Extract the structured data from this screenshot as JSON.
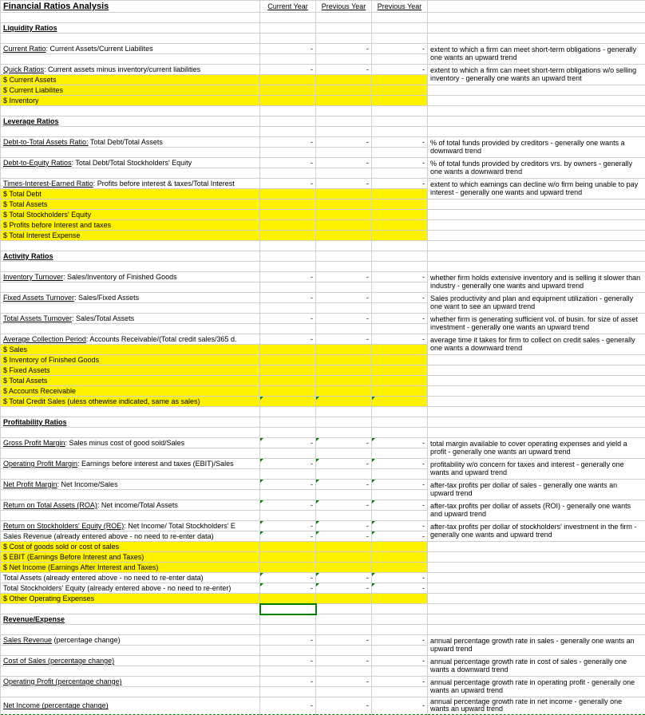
{
  "title": "Financial Ratios Analysis",
  "cols": {
    "cy": "Current Year",
    "py1": "Previous Year",
    "py2": "Previous Year"
  },
  "dash": "-",
  "sections": {
    "liquidity": {
      "heading": "Liquidity Ratios",
      "current_ratio": {
        "label": "Current Ratio",
        "formula": ": Current Assets/Current Liabilites",
        "note": "extent to which a firm can meet short-term obligations - generally one wants an upward trend"
      },
      "quick_ratios": {
        "label": "Quick Ratios",
        "formula": ":  Current assets minus inventory/current liabilities",
        "note": "extent to which a firm can meet short-term obligations w/o selling inventory - generally one wants an upward trent"
      },
      "inputs": [
        "$  Current Assets",
        "$  Current Liabilites",
        "$  Inventory"
      ]
    },
    "leverage": {
      "heading": "Leverage Ratios",
      "debt_assets": {
        "label": "Debt-to-Total Assets Ratio:",
        "formula": " Total Debt/Total Assets",
        "note": "% of total funds provided by creditors - generally one wants a downward trend"
      },
      "debt_equity": {
        "label": "Debt-to-Equity Ratios",
        "formula": ":  Total Debt/Total Stockholders' Equity",
        "note": "% of total funds provided by creditors vrs. by owners - generally one wants a downward trend"
      },
      "tie": {
        "label": "Times-Interest-Earned Ratio",
        "formula": ":  Profits before interest & taxes/Total Interest",
        "note": "extent to which earnings can decline w/o firm being unable to pay interest - generally one wants and upward trend"
      },
      "inputs": [
        "$  Total Debt",
        "$  Total Assets",
        "$  Total Stockholders' Equity",
        "$  Profits before Interest and taxes",
        "$  Total Interest Expense"
      ]
    },
    "activity": {
      "heading": "Activity Ratios",
      "inv_turn": {
        "label": "Inventory Turnover",
        "formula": ":  Sales/Inventory of Finished Goods",
        "note": "whether firm holds extensive inventory and is selling it slower than industry - generally one wants and upward trend"
      },
      "fa_turn": {
        "label": "Fixed Assets Turnover",
        "formula": ":  Sales/Fixed Assets",
        "note": "Sales productivity and plan and equipment utilization - generally one want to see an upward trend"
      },
      "ta_turn": {
        "label": "Total Assets Turnover",
        "formula": ":  Sales/Total Assets",
        "note": "whether firm is generating sufficient vol. of busin. for size of asset investment - generally one wants an upward trend"
      },
      "acp": {
        "label": "Average Collection Period",
        "formula": ":  Accounts Receivable/(Total credit sales/365 d.",
        "note": "average time it takes for firm to collect on credit sales - generally one wants a downward trend"
      },
      "inputs": [
        "$  Sales",
        "$  Inventory of Finished Goods",
        "$   Fixed Assets",
        "$  Total Assets",
        "$  Accounts Receivable",
        "$  Total Credit Sales (uless othewise indicated, same as sales)"
      ]
    },
    "profitability": {
      "heading": "Profitability Ratios",
      "gpm": {
        "label": "Gross Profit Margin",
        "formula": ": Sales minus cost of good sold/Sales",
        "note": "total margin available to cover operating expenses and yield a profit - generally one wants an upward trend"
      },
      "opm": {
        "label": "Operating Profit Margin",
        "formula": ":  Earnings before interest and taxes (EBIT)/Sales",
        "note": "profitability  w/o concern for taxes  and interest - generally one wants and upward trend"
      },
      "npm": {
        "label": "Net Profit Margin",
        "formula": ":  Net Income/Sales",
        "note": "after-tax profits per dollar of sales - generally one wants an upward trend"
      },
      "roa": {
        "label": "Return on Total Assets (ROA)",
        "formula": ":  Net income/Total Assets",
        "note": "after-tax profits per dollar of assets  (ROI) - generally one wants and upward trend"
      },
      "roe": {
        "label": "Return on  Stockholders' Equity (ROE)",
        "formula": ":  Net Income/ Total Stockholders' E",
        "note": "after-tax profits per dollar of stockholders' investment in the firm - generally one wants and upward trend"
      },
      "sales_rev_note": "Sales Revenue (already entered above - no need to re-enter data)",
      "inputs1": [
        "$  Cost of goods sold or cost of sales",
        "$  EBIT (Earnings Before Interest and Taxes)",
        "$  Net Income (Earnings After Interest and Taxes)"
      ],
      "ta_note": "Total Assets (already entered above - no need to re-enter data)",
      "tse_note": "Total Stockholders' Equity (already entered above - no need to re-enter)",
      "inputs2": [
        "$  Other Operating Expenses"
      ]
    },
    "revexp": {
      "heading": "Revenue/Expense",
      "sales_rev": {
        "label": "Sales Revenue",
        "formula": " (percentage change)",
        "note": "annual percentage growth rate in sales - generally one wants an upward trend"
      },
      "cost_sales": {
        "label": "Cost of Sales  (percentage change)",
        "formula": "",
        "note": "annual percentage growth rate in cost of sales - generally one wants a downward trend"
      },
      "op_profit": {
        "label": "Operating Profit  (percentage change)",
        "formula": "",
        "note": "annual percentage growth rate in operating profit - generally one wants an upward trend"
      },
      "net_income": {
        "label": "Net Income  (percentage change)",
        "formula": "",
        "note": "annual percentage growth rate in net income - generally one wants an upward trend"
      }
    }
  },
  "colors": {
    "highlight": "#fff200",
    "grid": "#d0d0d0",
    "accent": "#008000"
  }
}
